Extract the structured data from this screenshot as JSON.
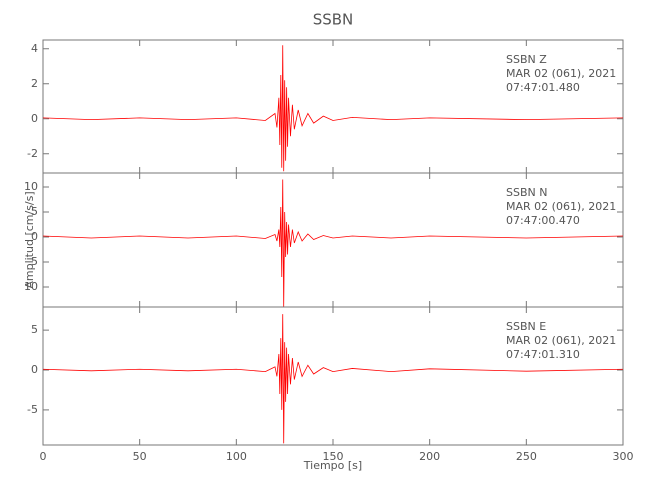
{
  "chart_data": [
    {
      "type": "line",
      "title": "SSBN",
      "annotations": [
        "SSBN   Z",
        "MAR 02 (061), 2021",
        "07:47:01.480"
      ],
      "x": [
        0,
        25,
        50,
        75,
        100,
        115,
        120,
        121,
        122,
        122.5,
        123,
        123.5,
        124,
        124.5,
        125,
        125.5,
        126,
        126.5,
        127,
        128,
        129,
        130,
        132,
        134,
        137,
        140,
        145,
        150,
        160,
        180,
        200,
        250,
        300
      ],
      "series": [
        {
          "color": "#ff0000",
          "values": [
            0.05,
            -0.05,
            0.05,
            -0.05,
            0.05,
            -0.1,
            0.3,
            -0.5,
            1.2,
            -1.5,
            2.5,
            -2.8,
            4.2,
            -3,
            2.2,
            -2.4,
            1.8,
            -1.6,
            1.2,
            -1,
            0.8,
            -0.6,
            0.5,
            -0.4,
            0.3,
            -0.25,
            0.15,
            -0.1,
            0.08,
            -0.05,
            0.05,
            -0.05,
            0.05
          ]
        }
      ],
      "xlim": [
        0,
        300
      ],
      "ylim": [
        -3.1,
        4.5
      ],
      "yticks": [
        -2,
        0,
        2,
        4
      ]
    },
    {
      "type": "line",
      "ylabel": "Amplitud [cm/s/s]",
      "annotations": [
        "SSBN   N",
        "MAR 02 (061), 2021",
        "07:47:00.470"
      ],
      "x": [
        0,
        25,
        50,
        75,
        100,
        115,
        120,
        121,
        122,
        122.5,
        123,
        123.5,
        124,
        124.5,
        125,
        125.5,
        126,
        126.5,
        127,
        128,
        129,
        130,
        132,
        134,
        137,
        140,
        145,
        150,
        160,
        180,
        200,
        250,
        300
      ],
      "series": [
        {
          "color": "#ff0000",
          "values": [
            0.2,
            -0.2,
            0.2,
            -0.2,
            0.2,
            -0.3,
            0.5,
            -0.8,
            1.5,
            -2,
            6,
            -8,
            11.5,
            -14,
            5,
            -4,
            3,
            -3.5,
            2.5,
            -2,
            1.5,
            -1.2,
            1,
            -0.8,
            0.6,
            -0.5,
            0.3,
            -0.2,
            0.2,
            -0.2,
            0.2,
            -0.2,
            0.2
          ]
        }
      ],
      "xlim": [
        0,
        300
      ],
      "ylim": [
        -14,
        12.8
      ],
      "yticks": [
        {
          "value": -10,
          "label": "10"
        },
        {
          "value": -5,
          "label": "5"
        },
        0,
        5,
        10
      ]
    },
    {
      "type": "line",
      "xlabel": "Tiempo [s]",
      "annotations": [
        "SSBN   E",
        "MAR 02 (061), 2021",
        "07:47:01.310"
      ],
      "x": [
        0,
        25,
        50,
        75,
        100,
        115,
        120,
        121,
        122,
        122.5,
        123,
        123.5,
        124,
        124.5,
        125,
        125.5,
        126,
        126.5,
        127,
        128,
        129,
        130,
        132,
        134,
        137,
        140,
        145,
        150,
        160,
        180,
        200,
        250,
        300
      ],
      "series": [
        {
          "color": "#ff0000",
          "values": [
            0.1,
            -0.1,
            0.1,
            -0.1,
            0.1,
            -0.2,
            0.4,
            -0.8,
            2,
            -3,
            4,
            -5,
            7,
            -9.2,
            3.5,
            -4,
            2.8,
            -3,
            2,
            -1.8,
            1.5,
            -1.2,
            1,
            -0.8,
            0.6,
            -0.5,
            0.3,
            -0.2,
            0.2,
            -0.2,
            0.15,
            -0.15,
            0.1
          ]
        }
      ],
      "xlim": [
        0,
        300
      ],
      "ylim": [
        -9.4,
        7.9
      ],
      "yticks": [
        -5,
        0,
        5
      ],
      "xticks": [
        0,
        50,
        100,
        150,
        200,
        250,
        300
      ]
    }
  ]
}
